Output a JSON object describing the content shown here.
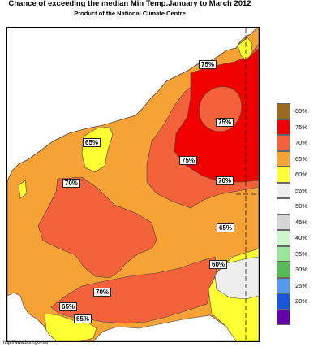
{
  "header": {
    "title": "Chance of exceeding the median Min Temp.January to March 2012",
    "subtitle": "Product of the National Climate Centre"
  },
  "footer": {
    "url": "http://www.bom.gov.au"
  },
  "map": {
    "labels": [
      "75%",
      "75%",
      "75%",
      "65%",
      "70%",
      "70%",
      "65%",
      "60%",
      "70%",
      "65%",
      "65%"
    ]
  },
  "legend": {
    "items": [
      {
        "label": "80%",
        "color": "#9c6a1c"
      },
      {
        "label": "75%",
        "color": "#f20000"
      },
      {
        "label": "70%",
        "color": "#f3623a"
      },
      {
        "label": "65%",
        "color": "#f7a234"
      },
      {
        "label": "60%",
        "color": "#ffff33"
      },
      {
        "label": "55%",
        "color": "#eeeeee"
      },
      {
        "label": "50%",
        "color": "#ffffff"
      },
      {
        "label": "45%",
        "color": "#d6d6d6"
      },
      {
        "label": "40%",
        "color": "#ccf8cc"
      },
      {
        "label": "35%",
        "color": "#99e699"
      },
      {
        "label": "30%",
        "color": "#55bb55"
      },
      {
        "label": "25%",
        "color": "#5599ee"
      },
      {
        "label": "20%",
        "color": "#1a55dd"
      },
      {
        "label": "",
        "color": "#6600aa"
      }
    ]
  }
}
